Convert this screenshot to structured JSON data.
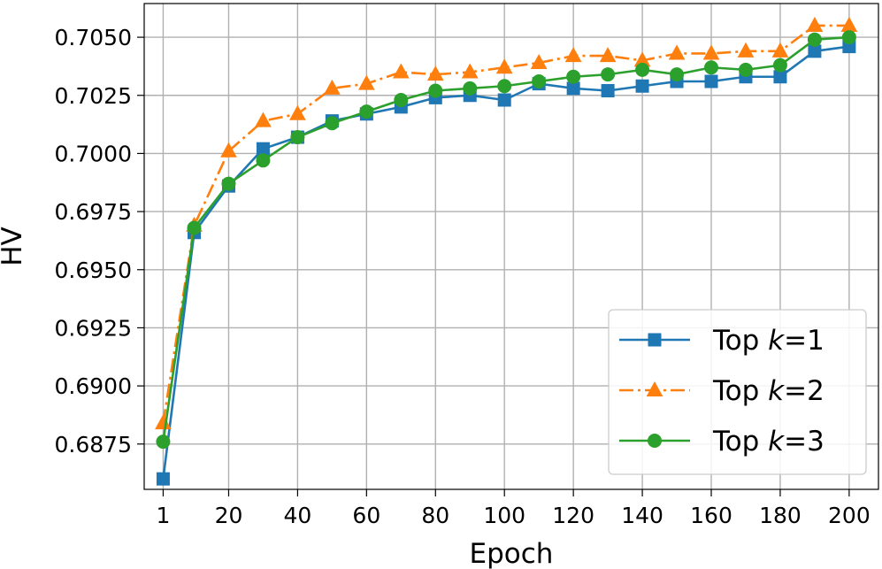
{
  "chart_data": {
    "type": "line",
    "xlabel": "Epoch",
    "ylabel": "HV",
    "grid": true,
    "legend_position": "lower-right",
    "x": [
      1,
      10,
      20,
      30,
      40,
      50,
      60,
      70,
      80,
      90,
      100,
      110,
      120,
      130,
      140,
      150,
      160,
      170,
      180,
      190,
      200
    ],
    "xlim": [
      -4.5,
      208.5
    ],
    "ylim": [
      0.68555,
      0.70645
    ],
    "xticks": [
      1,
      20,
      40,
      60,
      80,
      100,
      120,
      140,
      160,
      180,
      200
    ],
    "xtick_labels": [
      "1",
      "20",
      "40",
      "60",
      "80",
      "100",
      "120",
      "140",
      "160",
      "180",
      "200"
    ],
    "yticks": [
      0.6875,
      0.69,
      0.6925,
      0.695,
      0.6975,
      0.7,
      0.7025,
      0.705
    ],
    "ytick_labels": [
      "0.6875",
      "0.6900",
      "0.6925",
      "0.6950",
      "0.6975",
      "0.7000",
      "0.7025",
      "0.7050"
    ],
    "series": [
      {
        "legend_prefix": "Top ",
        "legend_var": "k",
        "legend_suffix": "=1",
        "color": "#1f77b4",
        "marker": "square",
        "linestyle": "solid",
        "values": [
          0.686,
          0.6966,
          0.6986,
          0.7002,
          0.7007,
          0.7014,
          0.7017,
          0.702,
          0.7024,
          0.7025,
          0.7023,
          0.703,
          0.7028,
          0.7027,
          0.7029,
          0.7031,
          0.7031,
          0.7033,
          0.7033,
          0.7044,
          0.7046
        ]
      },
      {
        "legend_prefix": "Top ",
        "legend_var": "k",
        "legend_suffix": "=2",
        "color": "#ff7f0e",
        "marker": "triangle",
        "linestyle": "dashdot",
        "values": [
          0.6884,
          0.6969,
          0.7001,
          0.7014,
          0.7017,
          0.7028,
          0.703,
          0.7035,
          0.7034,
          0.7035,
          0.7037,
          0.7039,
          0.7042,
          0.7042,
          0.704,
          0.7043,
          0.7043,
          0.7044,
          0.7044,
          0.7055,
          0.7055
        ]
      },
      {
        "legend_prefix": "Top ",
        "legend_var": "k",
        "legend_suffix": "=3",
        "color": "#2ca02c",
        "marker": "circle",
        "linestyle": "solid",
        "values": [
          0.6876,
          0.6968,
          0.6987,
          0.6997,
          0.7007,
          0.7013,
          0.7018,
          0.7023,
          0.7027,
          0.7028,
          0.7029,
          0.7031,
          0.7033,
          0.7034,
          0.7036,
          0.7034,
          0.7037,
          0.7036,
          0.7038,
          0.7049,
          0.705
        ]
      }
    ]
  }
}
